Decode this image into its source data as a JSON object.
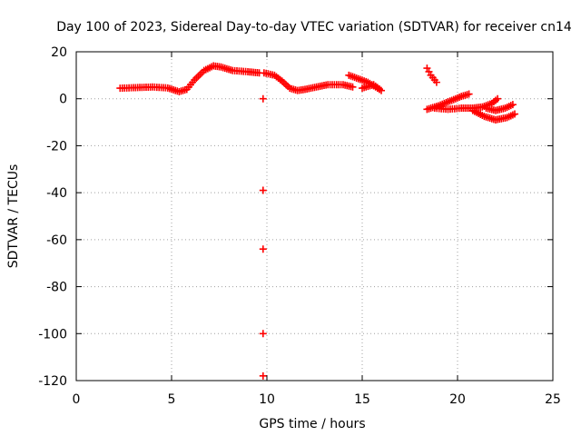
{
  "chart_data": {
    "type": "scatter",
    "title": "Day 100 of 2023, Sidereal Day-to-day VTEC variation (SDTVAR) for receiver cn14",
    "xlabel": "GPS time / hours",
    "ylabel": "SDTVAR / TECUs",
    "xlim": [
      0,
      25
    ],
    "ylim": [
      -120,
      20
    ],
    "xticks": [
      0,
      5,
      10,
      15,
      20,
      25
    ],
    "yticks": [
      20,
      0,
      -20,
      -40,
      -60,
      -80,
      -100,
      -120
    ],
    "grid": true,
    "marker": "+",
    "color": "#ff0000",
    "series": [
      {
        "name": "SDTVAR",
        "tracks": [
          [
            [
              2.3,
              4.5
            ],
            [
              3,
              4.7
            ],
            [
              4,
              5
            ],
            [
              4.8,
              4.6
            ],
            [
              5.4,
              3
            ],
            [
              5.8,
              4
            ],
            [
              6.2,
              8
            ],
            [
              6.7,
              12
            ],
            [
              7.2,
              14
            ],
            [
              7.6,
              13.5
            ],
            [
              8.2,
              12
            ],
            [
              9,
              11.5
            ],
            [
              9.6,
              11
            ]
          ],
          [
            [
              9.85,
              11
            ],
            [
              10.4,
              10
            ],
            [
              10.8,
              7.5
            ],
            [
              11.2,
              4.5
            ],
            [
              11.6,
              3.5
            ],
            [
              12,
              4
            ],
            [
              12.6,
              5
            ],
            [
              13.2,
              6
            ],
            [
              14,
              6
            ],
            [
              14.5,
              5
            ]
          ],
          [
            [
              14.3,
              10
            ],
            [
              14.8,
              8.5
            ],
            [
              15.3,
              7
            ],
            [
              15.7,
              5
            ],
            [
              16,
              3.5
            ],
            [
              15.6,
              6
            ],
            [
              15,
              4.5
            ]
          ],
          [
            [
              18.4,
              13
            ],
            [
              18.6,
              10
            ],
            [
              18.9,
              7
            ]
          ],
          [
            [
              18.4,
              -4.5
            ],
            [
              19,
              -3
            ],
            [
              19.6,
              -1
            ],
            [
              20.2,
              1
            ],
            [
              20.6,
              2
            ]
          ],
          [
            [
              18.8,
              -4
            ],
            [
              19.5,
              -4.5
            ],
            [
              20.2,
              -4
            ],
            [
              20.8,
              -4
            ],
            [
              21.3,
              -3.5
            ],
            [
              21.8,
              -2
            ],
            [
              22.1,
              0
            ]
          ],
          [
            [
              20.8,
              -5
            ],
            [
              21.4,
              -7.5
            ],
            [
              22,
              -9
            ],
            [
              22.6,
              -8
            ],
            [
              23,
              -6.5
            ]
          ],
          [
            [
              21.5,
              -4
            ],
            [
              22,
              -5
            ],
            [
              22.5,
              -4
            ],
            [
              22.9,
              -2.5
            ]
          ]
        ],
        "points": [
          [
            9.8,
            0
          ],
          [
            9.8,
            -39
          ],
          [
            9.8,
            -64
          ],
          [
            9.8,
            -100
          ],
          [
            9.8,
            -118
          ]
        ]
      }
    ]
  }
}
